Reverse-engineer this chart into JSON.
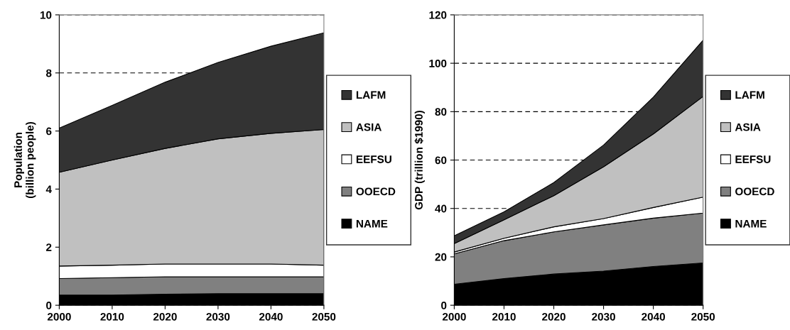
{
  "chart_data": [
    {
      "type": "area",
      "stacked": true,
      "ylabel": "Population\n(billion people)",
      "x": [
        2000,
        2010,
        2020,
        2030,
        2040,
        2050
      ],
      "xlim": [
        2000,
        2050
      ],
      "xticks": [
        2000,
        2010,
        2020,
        2030,
        2040,
        2050
      ],
      "ylim": [
        0,
        10
      ],
      "yticks": [
        0,
        2,
        4,
        6,
        8,
        10
      ],
      "grid": "y",
      "legend": "right",
      "series": [
        {
          "name": "NAME",
          "color": "#000000",
          "values": [
            0.35,
            0.35,
            0.38,
            0.4,
            0.4,
            0.4
          ]
        },
        {
          "name": "OOECD",
          "color": "#808080",
          "values": [
            0.57,
            0.6,
            0.6,
            0.58,
            0.58,
            0.58
          ]
        },
        {
          "name": "EEFSU",
          "color": "#ffffff",
          "values": [
            0.43,
            0.43,
            0.44,
            0.44,
            0.44,
            0.4
          ]
        },
        {
          "name": "ASIA",
          "color": "#c0c0c0",
          "values": [
            3.23,
            3.62,
            3.98,
            4.31,
            4.5,
            4.67
          ]
        },
        {
          "name": "LAFM",
          "color": "#333333",
          "values": [
            1.52,
            1.88,
            2.28,
            2.63,
            3.0,
            3.33
          ]
        }
      ]
    },
    {
      "type": "area",
      "stacked": true,
      "ylabel": "GDP (trillion $1990)",
      "x": [
        2000,
        2010,
        2020,
        2030,
        2040,
        2050
      ],
      "xlim": [
        2000,
        2050
      ],
      "xticks": [
        2000,
        2010,
        2020,
        2030,
        2040,
        2050
      ],
      "ylim": [
        0,
        120
      ],
      "yticks": [
        0,
        20,
        40,
        60,
        80,
        100,
        120
      ],
      "grid": "y",
      "legend": "right",
      "series": [
        {
          "name": "NAME",
          "color": "#000000",
          "values": [
            8.7,
            11,
            12.9,
            14.1,
            16,
            17.5
          ]
        },
        {
          "name": "OOECD",
          "color": "#808080",
          "values": [
            12.5,
            15.7,
            17.4,
            19.1,
            20,
            20.6
          ]
        },
        {
          "name": "EEFSU",
          "color": "#ffffff",
          "values": [
            0.8,
            1.0,
            2.1,
            2.6,
            4.4,
            6.6
          ]
        },
        {
          "name": "ASIA",
          "color": "#c0c0c0",
          "values": [
            3.5,
            7.6,
            12.9,
            21.4,
            30.4,
            41.6
          ]
        },
        {
          "name": "LAFM",
          "color": "#333333",
          "values": [
            3.2,
            3.3,
            5.4,
            9.0,
            15.2,
            23.2
          ]
        }
      ]
    }
  ]
}
